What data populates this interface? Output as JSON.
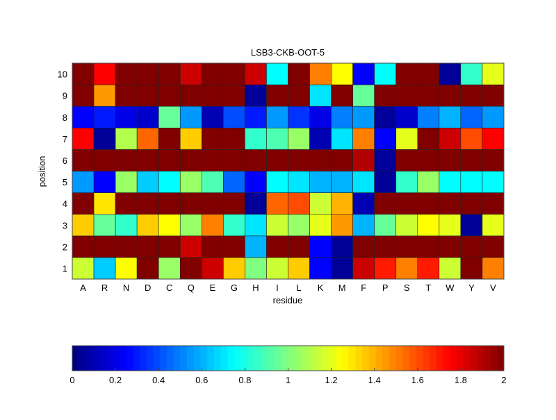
{
  "chart_data": {
    "type": "heatmap",
    "title": "LSB3-CKB-OOT-5",
    "xlabel": "residue",
    "ylabel": "position",
    "x_categories": [
      "A",
      "R",
      "N",
      "D",
      "C",
      "Q",
      "E",
      "G",
      "H",
      "I",
      "L",
      "K",
      "M",
      "F",
      "P",
      "S",
      "T",
      "W",
      "Y",
      "V"
    ],
    "y_categories": [
      "1",
      "2",
      "3",
      "4",
      "5",
      "6",
      "7",
      "8",
      "9",
      "10"
    ],
    "colormap": "jet",
    "clim": [
      0,
      2
    ],
    "colorbar": {
      "placement": "bottom",
      "ticks": [
        "0",
        "0.2",
        "0.4",
        "0.6",
        "0.8",
        "1",
        "1.2",
        "1.4",
        "1.6",
        "1.8",
        "2"
      ]
    },
    "values_by_position": {
      "1": [
        1.15,
        0.65,
        1.25,
        2,
        1.05,
        2,
        1.85,
        1.35,
        1.0,
        1.15,
        1.35,
        0.25,
        0.05,
        1.85,
        1.7,
        1.5,
        1.7,
        1.15,
        2,
        1.5
      ],
      "2": [
        2,
        2,
        2,
        2,
        2,
        1.85,
        2,
        2,
        0.6,
        2,
        2,
        0.25,
        0.05,
        2,
        2,
        2,
        2,
        2,
        2,
        2
      ],
      "3": [
        1.35,
        0.95,
        0.85,
        1.35,
        1.25,
        1.05,
        1.5,
        0.85,
        0.7,
        1.15,
        1.05,
        1.2,
        1.45,
        0.6,
        0.95,
        1.15,
        1.25,
        1.2,
        0.05,
        1.2
      ],
      "4": [
        2,
        1.3,
        2,
        2,
        2,
        2,
        2,
        2,
        0.05,
        1.55,
        1.6,
        1.15,
        1.4,
        0.1,
        2,
        2,
        2,
        2,
        2,
        2
      ],
      "5": [
        0.55,
        0.25,
        1.05,
        0.65,
        0.75,
        1.05,
        0.9,
        0.45,
        0.25,
        0.75,
        0.7,
        0.6,
        0.6,
        0.7,
        0.05,
        0.85,
        1.05,
        0.75,
        0.75,
        0.75
      ],
      "6": [
        2,
        2,
        2,
        2,
        2,
        2,
        2,
        2,
        2,
        2,
        2,
        2,
        2,
        1.9,
        0.05,
        2,
        2,
        2,
        2,
        2
      ],
      "7": [
        1.75,
        0.05,
        1.1,
        1.55,
        2,
        1.35,
        2,
        2,
        0.85,
        0.9,
        1.05,
        0.1,
        0.7,
        1.5,
        0.25,
        1.2,
        2,
        1.85,
        1.6,
        1.75
      ],
      "8": [
        0.25,
        0.3,
        0.2,
        0.15,
        0.95,
        0.55,
        0.1,
        0.4,
        0.3,
        0.55,
        0.35,
        0.2,
        0.5,
        0.55,
        0.05,
        0.15,
        0.5,
        0.6,
        0.45,
        0.55
      ],
      "9": [
        2,
        1.45,
        2,
        2,
        2,
        2,
        2,
        2,
        0.05,
        2,
        2,
        0.7,
        2,
        0.95,
        2,
        2,
        2,
        2,
        2,
        2
      ],
      "10": [
        2,
        1.75,
        2,
        2,
        2,
        1.85,
        2,
        2,
        1.85,
        0.75,
        2,
        1.5,
        1.25,
        0.25,
        0.75,
        2,
        2,
        0.05,
        0.85,
        1.2
      ]
    }
  }
}
